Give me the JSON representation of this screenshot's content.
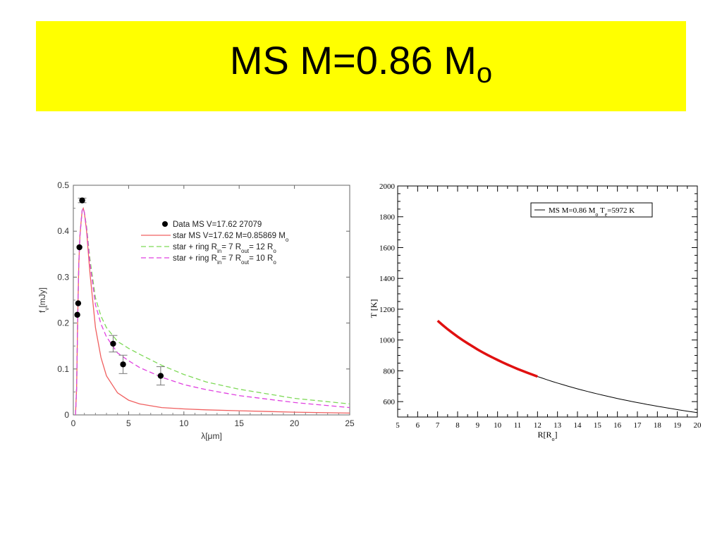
{
  "title": {
    "main": "MS M=0.86 M",
    "sub": "o"
  },
  "colors": {
    "banner": "#ffff00",
    "star": "#f06060",
    "ring12": "#7ed957",
    "ring10": "#e040e0",
    "data_points": "#000000",
    "temperature_highlight": "#e01010",
    "temperature_line": "#000000"
  },
  "chart_data": [
    {
      "type": "line",
      "xlabel": "λ[μm]",
      "ylabel": "f",
      "ylabel_sub": "ν",
      "ylabel_rest": "[mJy]",
      "xlim": [
        0,
        25
      ],
      "ylim": [
        0,
        0.5
      ],
      "xticks": [
        0,
        5,
        10,
        15,
        20,
        25
      ],
      "yticks": [
        0,
        0.1,
        0.2,
        0.3,
        0.4,
        0.5
      ],
      "grid": false,
      "legend_placement": "top-right",
      "legend": [
        {
          "label": "Data MS V=17.62 27079",
          "sub": "",
          "label2": "",
          "sub2": "",
          "label3": "",
          "sub3": "",
          "label4": "",
          "style": "marker"
        },
        {
          "label": "star MS V=17.62 M=0.85869 M",
          "sub": "o",
          "label2": "",
          "sub2": "",
          "label3": "",
          "sub3": "",
          "label4": "",
          "style": "solid"
        },
        {
          "label": "star + ring R",
          "sub": "in",
          "label2": "= 7 R",
          "sub2": "out",
          "label3": "= 12 R",
          "sub3": "o",
          "label4": "",
          "style": "dashed"
        },
        {
          "label": "star + ring R",
          "sub": "in",
          "label2": "= 7 R",
          "sub2": "out",
          "label3": "= 10 R",
          "sub3": "o",
          "label4": "",
          "style": "dashed"
        }
      ],
      "data_points": [
        {
          "x": 0.36,
          "y": 0.218,
          "err": 0.0
        },
        {
          "x": 0.44,
          "y": 0.243,
          "err": 0.0
        },
        {
          "x": 0.55,
          "y": 0.365,
          "err": 0.0
        },
        {
          "x": 0.8,
          "y": 0.467,
          "err": 0.005
        },
        {
          "x": 3.6,
          "y": 0.155,
          "err": 0.018
        },
        {
          "x": 4.5,
          "y": 0.11,
          "err": 0.02
        },
        {
          "x": 7.9,
          "y": 0.085,
          "err": 0.02
        }
      ],
      "series": [
        {
          "style": "solid",
          "x": [
            0.2,
            0.3,
            0.4,
            0.5,
            0.6,
            0.7,
            0.8,
            0.9,
            1.0,
            1.2,
            1.5,
            2,
            2.5,
            3,
            4,
            5,
            6,
            8,
            10,
            12,
            15,
            20,
            25
          ],
          "y": [
            0.0,
            0.06,
            0.22,
            0.33,
            0.39,
            0.42,
            0.445,
            0.45,
            0.44,
            0.4,
            0.31,
            0.19,
            0.125,
            0.085,
            0.048,
            0.032,
            0.024,
            0.016,
            0.013,
            0.011,
            0.009,
            0.006,
            0.004
          ]
        },
        {
          "style": "dashed",
          "x": [
            0.2,
            0.3,
            0.4,
            0.5,
            0.6,
            0.7,
            0.8,
            0.9,
            1.0,
            1.2,
            1.5,
            2,
            2.5,
            3,
            4,
            5,
            6,
            8,
            10,
            12,
            15,
            20,
            25
          ],
          "y": [
            0.0,
            0.06,
            0.22,
            0.33,
            0.39,
            0.42,
            0.445,
            0.45,
            0.44,
            0.41,
            0.34,
            0.255,
            0.215,
            0.19,
            0.16,
            0.145,
            0.132,
            0.108,
            0.088,
            0.072,
            0.056,
            0.036,
            0.024
          ]
        },
        {
          "style": "dashed",
          "x": [
            0.2,
            0.3,
            0.4,
            0.5,
            0.6,
            0.7,
            0.8,
            0.9,
            1.0,
            1.2,
            1.5,
            2,
            2.5,
            3,
            4,
            5,
            6,
            8,
            10,
            12,
            15,
            20,
            25
          ],
          "y": [
            0.0,
            0.06,
            0.22,
            0.33,
            0.39,
            0.42,
            0.445,
            0.45,
            0.44,
            0.405,
            0.33,
            0.24,
            0.198,
            0.17,
            0.135,
            0.118,
            0.103,
            0.082,
            0.066,
            0.055,
            0.042,
            0.027,
            0.016
          ]
        }
      ]
    },
    {
      "type": "line",
      "xlabel": "R[R",
      "xlabel_sub": "o",
      "xlabel_end": "]",
      "ylabel": "T [K]",
      "xlim": [
        5,
        20
      ],
      "ylim": [
        500,
        2000
      ],
      "xticks": [
        5,
        6,
        7,
        8,
        9,
        10,
        11,
        12,
        13,
        14,
        15,
        16,
        17,
        18,
        19,
        20
      ],
      "yticks": [
        600,
        800,
        1000,
        1200,
        1400,
        1600,
        1800,
        2000
      ],
      "grid": false,
      "legend_placement": "top-right",
      "legend": [
        {
          "label": "MS M=0.86 M",
          "sub": "o",
          "label2": " T",
          "sub2": "e",
          "label3": "=5972 K"
        }
      ],
      "series": [
        {
          "style": "solid",
          "x": [
            7,
            8,
            9,
            10,
            11,
            12,
            13,
            14,
            15,
            16,
            17,
            18,
            19,
            20
          ],
          "y": [
            1125,
            1050,
            990,
            940,
            895,
            755,
            720,
            685,
            655,
            630,
            605,
            580,
            555,
            512
          ]
        },
        {
          "style": "highlight",
          "x": [
            7,
            7.5,
            8,
            8.5,
            9,
            9.5,
            10,
            10.5,
            11,
            11.5,
            12
          ],
          "y": [
            1125,
            1080,
            1040,
            1003,
            970,
            938,
            908,
            880,
            855,
            805,
            757
          ]
        }
      ]
    }
  ]
}
